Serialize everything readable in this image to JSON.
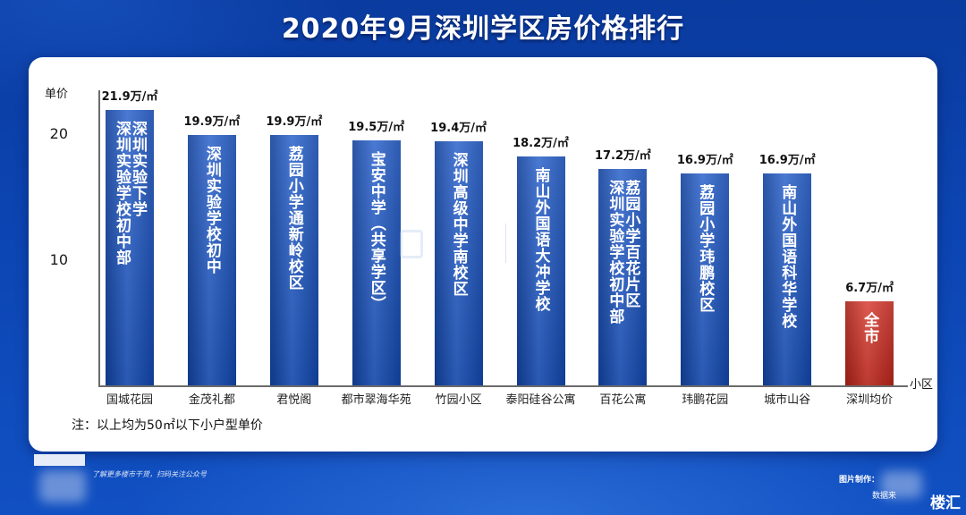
{
  "chart_data": {
    "type": "bar",
    "title": "2020年9月深圳学区房价格排行",
    "ylabel": "单价",
    "xlabel": "小区",
    "categories": [
      "国城花园",
      "金茂礼都",
      "君悦阁",
      "都市翠海华苑",
      "竹园小区",
      "泰阳硅谷公寓",
      "百花公寓",
      "玮鹏花园",
      "城市山谷",
      "深圳均价"
    ],
    "values": [
      21.9,
      19.9,
      19.9,
      19.5,
      19.4,
      18.2,
      17.2,
      16.9,
      16.9,
      6.7
    ],
    "value_unit": "万/㎡",
    "bar_annotations": [
      [
        "深圳实验下学",
        "深圳实验学校初中部"
      ],
      [
        "深圳实验学校初中"
      ],
      [
        "荔园小学通新岭校区"
      ],
      [
        "宝安中学（共享学区）"
      ],
      [
        "深圳高级中学南校区"
      ],
      [
        "南山外国语大冲学校"
      ],
      [
        "荔园小学百花片区",
        "深圳实验学校初中部"
      ],
      [
        "荔园小学玮鹏校区"
      ],
      [
        "南山外国语科华学校"
      ],
      [
        "全市"
      ]
    ],
    "bar_colors": [
      "#1552c6",
      "#1552c6",
      "#1552c6",
      "#1552c6",
      "#1552c6",
      "#1552c6",
      "#1552c6",
      "#1552c6",
      "#1552c6",
      "#d42a1e"
    ],
    "yticks": [
      10,
      20
    ],
    "ylim": [
      0,
      23.5
    ],
    "grid": false,
    "legend": "none"
  },
  "note": "注：以上均为50㎡以下小户型单价",
  "footer": {
    "promo_text": "了解更多楼市干货，扫码关注公众号",
    "credit_label": "图片制作：",
    "source_label": "数据来",
    "brand_text": "楼汇"
  },
  "theme": {
    "page_background": "#0c45b3",
    "panel_background": "#ffffff",
    "axis_color": "#6b6b6b",
    "bar_text_color": "#ffffff"
  }
}
